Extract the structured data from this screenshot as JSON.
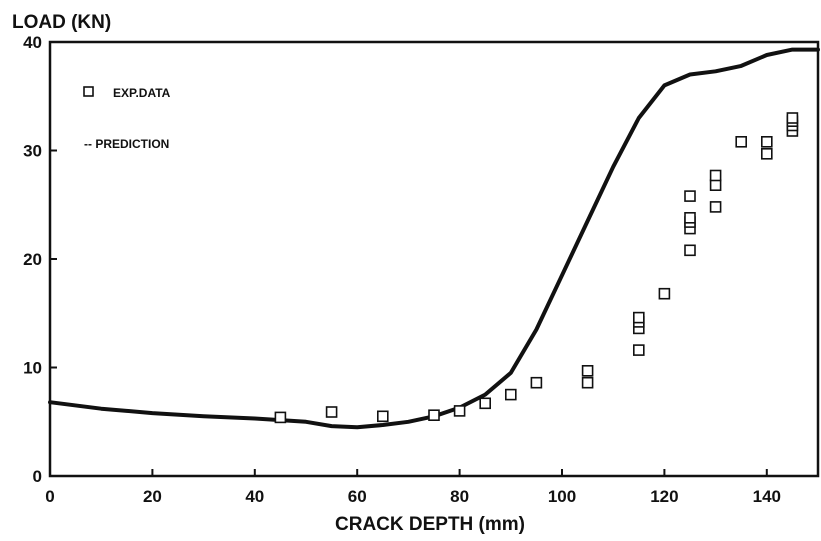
{
  "chart_data": {
    "type": "scatter",
    "title": "",
    "ylabel": "LOAD (KN)",
    "xlabel": "CRACK DEPTH (mm)",
    "xlim": [
      0,
      150
    ],
    "ylim": [
      0,
      40
    ],
    "x_ticks": [
      "0",
      "20",
      "40",
      "60",
      "80",
      "100",
      "120",
      "140"
    ],
    "y_ticks": [
      "0",
      "10",
      "20",
      "30",
      "40"
    ],
    "grid": false,
    "legend_position": "top-left",
    "legend": [
      {
        "symbol": "square",
        "label": "EXP.DATA"
      },
      {
        "symbol": "line",
        "label": "-- PREDICTION"
      }
    ],
    "series": [
      {
        "name": "EXP.DATA",
        "type": "scatter",
        "points": [
          [
            45,
            5.4
          ],
          [
            55,
            5.9
          ],
          [
            65,
            5.5
          ],
          [
            75,
            5.6
          ],
          [
            80,
            6.0
          ],
          [
            85,
            6.7
          ],
          [
            90,
            7.5
          ],
          [
            95,
            8.6
          ],
          [
            105,
            8.6
          ],
          [
            105,
            9.7
          ],
          [
            115,
            11.6
          ],
          [
            115,
            13.6
          ],
          [
            115,
            14.2
          ],
          [
            115,
            14.6
          ],
          [
            120,
            16.8
          ],
          [
            125,
            20.8
          ],
          [
            125,
            22.8
          ],
          [
            125,
            23.4
          ],
          [
            125,
            23.8
          ],
          [
            125,
            25.8
          ],
          [
            130,
            24.8
          ],
          [
            130,
            26.8
          ],
          [
            130,
            27.7
          ],
          [
            135,
            30.8
          ],
          [
            140,
            29.7
          ],
          [
            140,
            30.8
          ],
          [
            145,
            31.8
          ],
          [
            145,
            32.3
          ],
          [
            145,
            32.7
          ],
          [
            145,
            33.0
          ]
        ]
      },
      {
        "name": "PREDICTION",
        "type": "line",
        "points": [
          [
            0,
            6.8
          ],
          [
            10,
            6.2
          ],
          [
            20,
            5.8
          ],
          [
            30,
            5.5
          ],
          [
            40,
            5.3
          ],
          [
            50,
            5.0
          ],
          [
            55,
            4.6
          ],
          [
            60,
            4.5
          ],
          [
            65,
            4.7
          ],
          [
            70,
            5.0
          ],
          [
            75,
            5.5
          ],
          [
            80,
            6.3
          ],
          [
            85,
            7.5
          ],
          [
            90,
            9.5
          ],
          [
            95,
            13.5
          ],
          [
            100,
            18.5
          ],
          [
            105,
            23.5
          ],
          [
            110,
            28.5
          ],
          [
            115,
            33.0
          ],
          [
            120,
            36.0
          ],
          [
            125,
            37.0
          ],
          [
            130,
            37.3
          ],
          [
            135,
            37.8
          ],
          [
            140,
            38.8
          ],
          [
            145,
            39.3
          ],
          [
            150,
            39.3
          ]
        ]
      }
    ]
  }
}
